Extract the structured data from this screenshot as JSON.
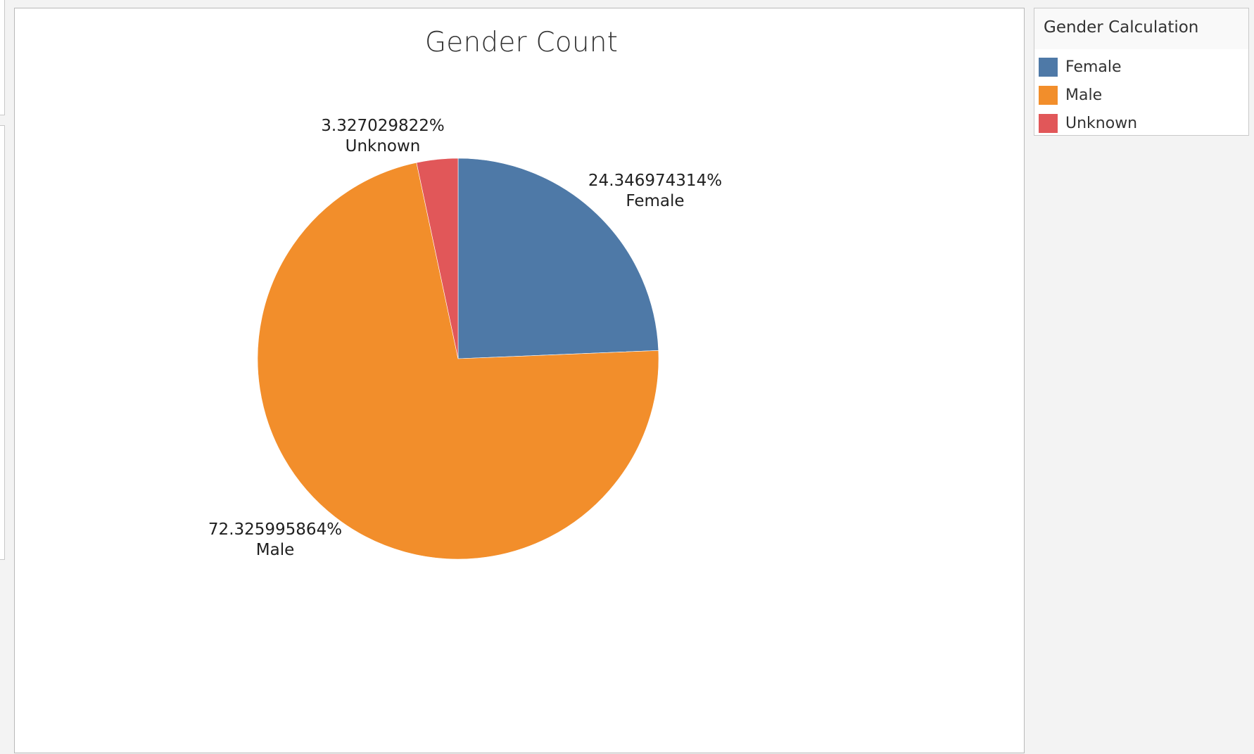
{
  "chart_data": {
    "type": "pie",
    "title": "Gender Count",
    "slices": [
      {
        "label": "Female",
        "value": 24.346974314,
        "display": "24.346974314%",
        "color": "#4e79a7"
      },
      {
        "label": "Male",
        "value": 72.325995864,
        "display": "72.325995864%",
        "color": "#f28e2b"
      },
      {
        "label": "Unknown",
        "value": 3.327029822,
        "display": "3.327029822%",
        "color": "#e15759"
      }
    ],
    "start": "12 o'clock",
    "direction": "clockwise",
    "legend": {
      "title": "Gender Calculation",
      "placement": "right",
      "entries": [
        {
          "label": "Female",
          "color": "#4e79a7"
        },
        {
          "label": "Male",
          "color": "#f28e2b"
        },
        {
          "label": "Unknown",
          "color": "#e15759"
        }
      ]
    }
  }
}
